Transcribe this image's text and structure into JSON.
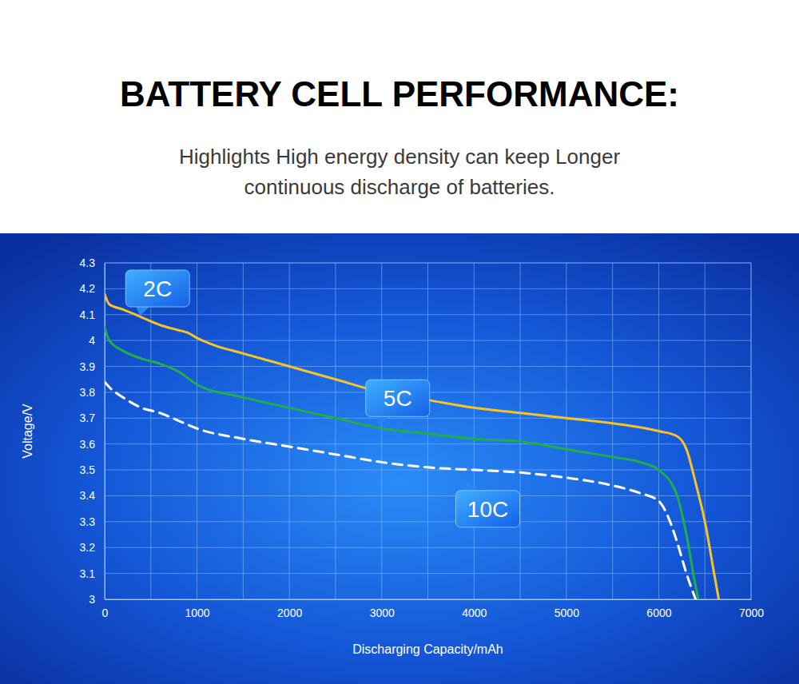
{
  "chart_data": {
    "type": "line",
    "title": "BATTERY CELL PERFORMANCE:",
    "subtitle": [
      "Highlights High energy density can keep Longer",
      "continuous discharge of batteries."
    ],
    "x_label": "Discharging Capacity/mAh",
    "y_label": "Voltage/V",
    "xlim": [
      0,
      7000
    ],
    "ylim": [
      3,
      4.3
    ],
    "xticks": [
      0,
      1000,
      2000,
      3000,
      4000,
      5000,
      6000,
      7000
    ],
    "yticks": [
      3,
      3.1,
      3.2,
      3.3,
      3.4,
      3.5,
      3.6,
      3.7,
      3.8,
      3.9,
      4,
      4.1,
      4.2,
      4.3
    ],
    "grid": true,
    "series": [
      {
        "name": "2C",
        "color": "#f7c325",
        "line_style": "solid",
        "x": [
          0,
          50,
          200,
          400,
          600,
          800,
          900,
          1000,
          1200,
          1500,
          1800,
          2000,
          2500,
          3000,
          3500,
          4000,
          4500,
          5000,
          5500,
          6000,
          6200,
          6300,
          6400,
          6500,
          6600,
          6650
        ],
        "values": [
          4.18,
          4.14,
          4.12,
          4.09,
          4.06,
          4.04,
          4.03,
          4.01,
          3.98,
          3.95,
          3.92,
          3.9,
          3.85,
          3.8,
          3.77,
          3.74,
          3.72,
          3.7,
          3.68,
          3.65,
          3.63,
          3.58,
          3.45,
          3.3,
          3.1,
          3.0
        ]
      },
      {
        "name": "5C",
        "color": "#1fae4a",
        "line_style": "solid",
        "x": [
          0,
          50,
          200,
          400,
          600,
          800,
          1000,
          1500,
          2000,
          2500,
          3000,
          3500,
          4000,
          4500,
          5000,
          5500,
          5800,
          6000,
          6200,
          6300,
          6400,
          6430
        ],
        "values": [
          4.05,
          4.0,
          3.96,
          3.93,
          3.91,
          3.88,
          3.83,
          3.78,
          3.74,
          3.7,
          3.66,
          3.64,
          3.62,
          3.61,
          3.58,
          3.55,
          3.53,
          3.5,
          3.4,
          3.25,
          3.05,
          3.0
        ]
      },
      {
        "name": "10C",
        "color": "#ffffff",
        "line_style": "dashed",
        "x": [
          0,
          50,
          200,
          400,
          600,
          800,
          1000,
          1500,
          2000,
          2500,
          3000,
          3500,
          4000,
          4500,
          5000,
          5500,
          5800,
          6000,
          6100,
          6200,
          6300,
          6400
        ],
        "values": [
          3.84,
          3.82,
          3.78,
          3.74,
          3.72,
          3.69,
          3.66,
          3.62,
          3.59,
          3.56,
          3.53,
          3.51,
          3.5,
          3.49,
          3.47,
          3.44,
          3.41,
          3.38,
          3.32,
          3.22,
          3.1,
          3.0
        ]
      }
    ]
  }
}
